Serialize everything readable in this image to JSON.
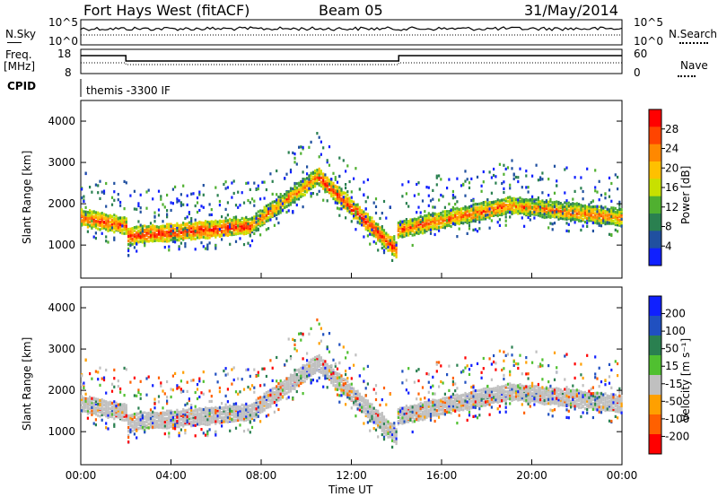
{
  "header": {
    "title_left": "Fort Hays West (fitACF)",
    "title_center": "Beam 05",
    "title_right": "31/May/2014"
  },
  "top_panels": {
    "nsky_label": "N.Sky",
    "nsky_ticks": [
      "10^5",
      "10^0"
    ],
    "nsearch_label": "N.Search",
    "nsearch_ticks": [
      "10^5",
      "10^0"
    ],
    "freq_label": "Freq.",
    "freq_unit": "[MHz]",
    "freq_ticks": [
      "18",
      "8"
    ],
    "nave_label": "Nave",
    "nave_ticks": [
      "60",
      "0"
    ],
    "cpid_label": "CPID",
    "cpid_value": "themis -3300 IF"
  },
  "chart_data": [
    {
      "type": "heatmap",
      "name_hint": "power",
      "ylabel": "Slant Range [km]",
      "y_ticks": [
        "4000",
        "3000",
        "2000",
        "1000"
      ],
      "ylim": [
        200,
        4500
      ],
      "colorbar_label": "Power [dB]",
      "colorbar_ticks": [
        "28",
        "24",
        "20",
        "16",
        "12",
        "8",
        "4"
      ],
      "colorbar_colors": [
        "#ff0000",
        "#ff4400",
        "#ff8800",
        "#ffc000",
        "#c8e000",
        "#50b030",
        "#2a8050",
        "#2050a0",
        "#1020ff"
      ],
      "bands": [
        {
          "t0": 0.0,
          "t1": 2.0,
          "r0": 1700,
          "r1": 1500,
          "level": 0.9
        },
        {
          "t0": 2.0,
          "t1": 7.5,
          "r0": 1250,
          "r1": 1500,
          "level": 0.95
        },
        {
          "t0": 7.5,
          "t1": 10.5,
          "r0": 1500,
          "r1": 2700,
          "level": 0.8
        },
        {
          "t0": 10.5,
          "t1": 14.0,
          "r0": 2700,
          "r1": 900,
          "level": 0.95
        },
        {
          "t0": 14.0,
          "t1": 19.0,
          "r0": 1400,
          "r1": 2000,
          "level": 0.85
        },
        {
          "t0": 19.0,
          "t1": 24.0,
          "r0": 2000,
          "r1": 1700,
          "level": 0.8
        }
      ]
    },
    {
      "type": "heatmap",
      "name_hint": "velocity",
      "ylabel": "Slant Range [km]",
      "xlabel": "Time UT",
      "x_ticks": [
        "00:00",
        "04:00",
        "08:00",
        "12:00",
        "16:00",
        "20:00",
        "00:00"
      ],
      "xlim": [
        0,
        24
      ],
      "y_ticks": [
        "4000",
        "3000",
        "2000",
        "1000"
      ],
      "ylim": [
        200,
        4500
      ],
      "colorbar_label": "Velocity [m s⁻¹]",
      "colorbar_ticks": [
        "200",
        "100",
        "50",
        "15",
        "-15",
        "-50",
        "-100",
        "-200"
      ],
      "colorbar_colors": [
        "#1020ff",
        "#2050c0",
        "#2a8050",
        "#50c030",
        "#c0c0c0",
        "#ffa000",
        "#ff6000",
        "#ff0000"
      ]
    }
  ]
}
